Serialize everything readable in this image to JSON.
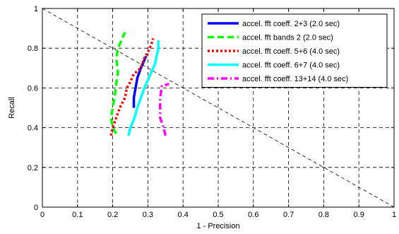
{
  "chart_data": {
    "type": "line",
    "title": "",
    "xlabel": "1 - Precision",
    "ylabel": "Recall",
    "xlim": [
      0,
      1
    ],
    "ylim": [
      0,
      1
    ],
    "xticks": [
      0,
      0.1,
      0.2,
      0.3,
      0.4,
      0.5,
      0.6,
      0.7,
      0.8,
      0.9,
      1
    ],
    "yticks": [
      0,
      0.2,
      0.4,
      0.6,
      0.8,
      1
    ],
    "xtick_labels": [
      "0",
      "0.1",
      "0.2",
      "0.3",
      "0.4",
      "0.5",
      "0.6",
      "0.7",
      "0.8",
      "0.9",
      "1"
    ],
    "ytick_labels": [
      "0",
      "0.2",
      "0.4",
      "0.6",
      "0.8",
      "1"
    ],
    "grid": true,
    "legend_position": "top-right",
    "reference_line": {
      "x": [
        0,
        1
      ],
      "y": [
        1,
        0
      ],
      "color": "#000000",
      "style": "dashed"
    },
    "series": [
      {
        "name": "accel. fft coeff. 2+3 (2.0 sec)",
        "color": "#0000ff",
        "style": "solid",
        "x": [
          0.26,
          0.26,
          0.265,
          0.27,
          0.28,
          0.29,
          0.295
        ],
        "y": [
          0.5,
          0.55,
          0.6,
          0.65,
          0.7,
          0.74,
          0.76
        ]
      },
      {
        "name": "accel. fft bands 2 (2.0 sec)",
        "color": "#00ff00",
        "style": "dashed",
        "x": [
          0.21,
          0.2,
          0.195,
          0.2,
          0.205,
          0.21,
          0.215,
          0.21,
          0.215,
          0.23,
          0.235
        ],
        "y": [
          0.37,
          0.4,
          0.45,
          0.5,
          0.55,
          0.62,
          0.68,
          0.75,
          0.8,
          0.86,
          0.88
        ]
      },
      {
        "name": "accel. fft coeff. 5+6 (4.0 sec)",
        "color": "#ff0000",
        "style": "dotted",
        "x": [
          0.195,
          0.2,
          0.21,
          0.22,
          0.235,
          0.24,
          0.25,
          0.26,
          0.28,
          0.29,
          0.3,
          0.31,
          0.315
        ],
        "y": [
          0.36,
          0.4,
          0.45,
          0.5,
          0.55,
          0.6,
          0.63,
          0.67,
          0.7,
          0.75,
          0.78,
          0.82,
          0.85
        ]
      },
      {
        "name": "accel. fft coeff. 6+7 (4.0 sec)",
        "color": "#00ffff",
        "style": "solid",
        "x": [
          0.245,
          0.25,
          0.26,
          0.27,
          0.28,
          0.29,
          0.3,
          0.31,
          0.32,
          0.325,
          0.33,
          0.33
        ],
        "y": [
          0.36,
          0.4,
          0.44,
          0.5,
          0.55,
          0.6,
          0.64,
          0.68,
          0.72,
          0.76,
          0.8,
          0.84
        ]
      },
      {
        "name": "accel. fft coeff. 13+14 (4.0 sec)",
        "color": "#ff00ff",
        "style": "dashdot",
        "x": [
          0.35,
          0.345,
          0.335,
          0.335,
          0.34,
          0.36
        ],
        "y": [
          0.36,
          0.4,
          0.45,
          0.55,
          0.61,
          0.62
        ]
      }
    ]
  }
}
